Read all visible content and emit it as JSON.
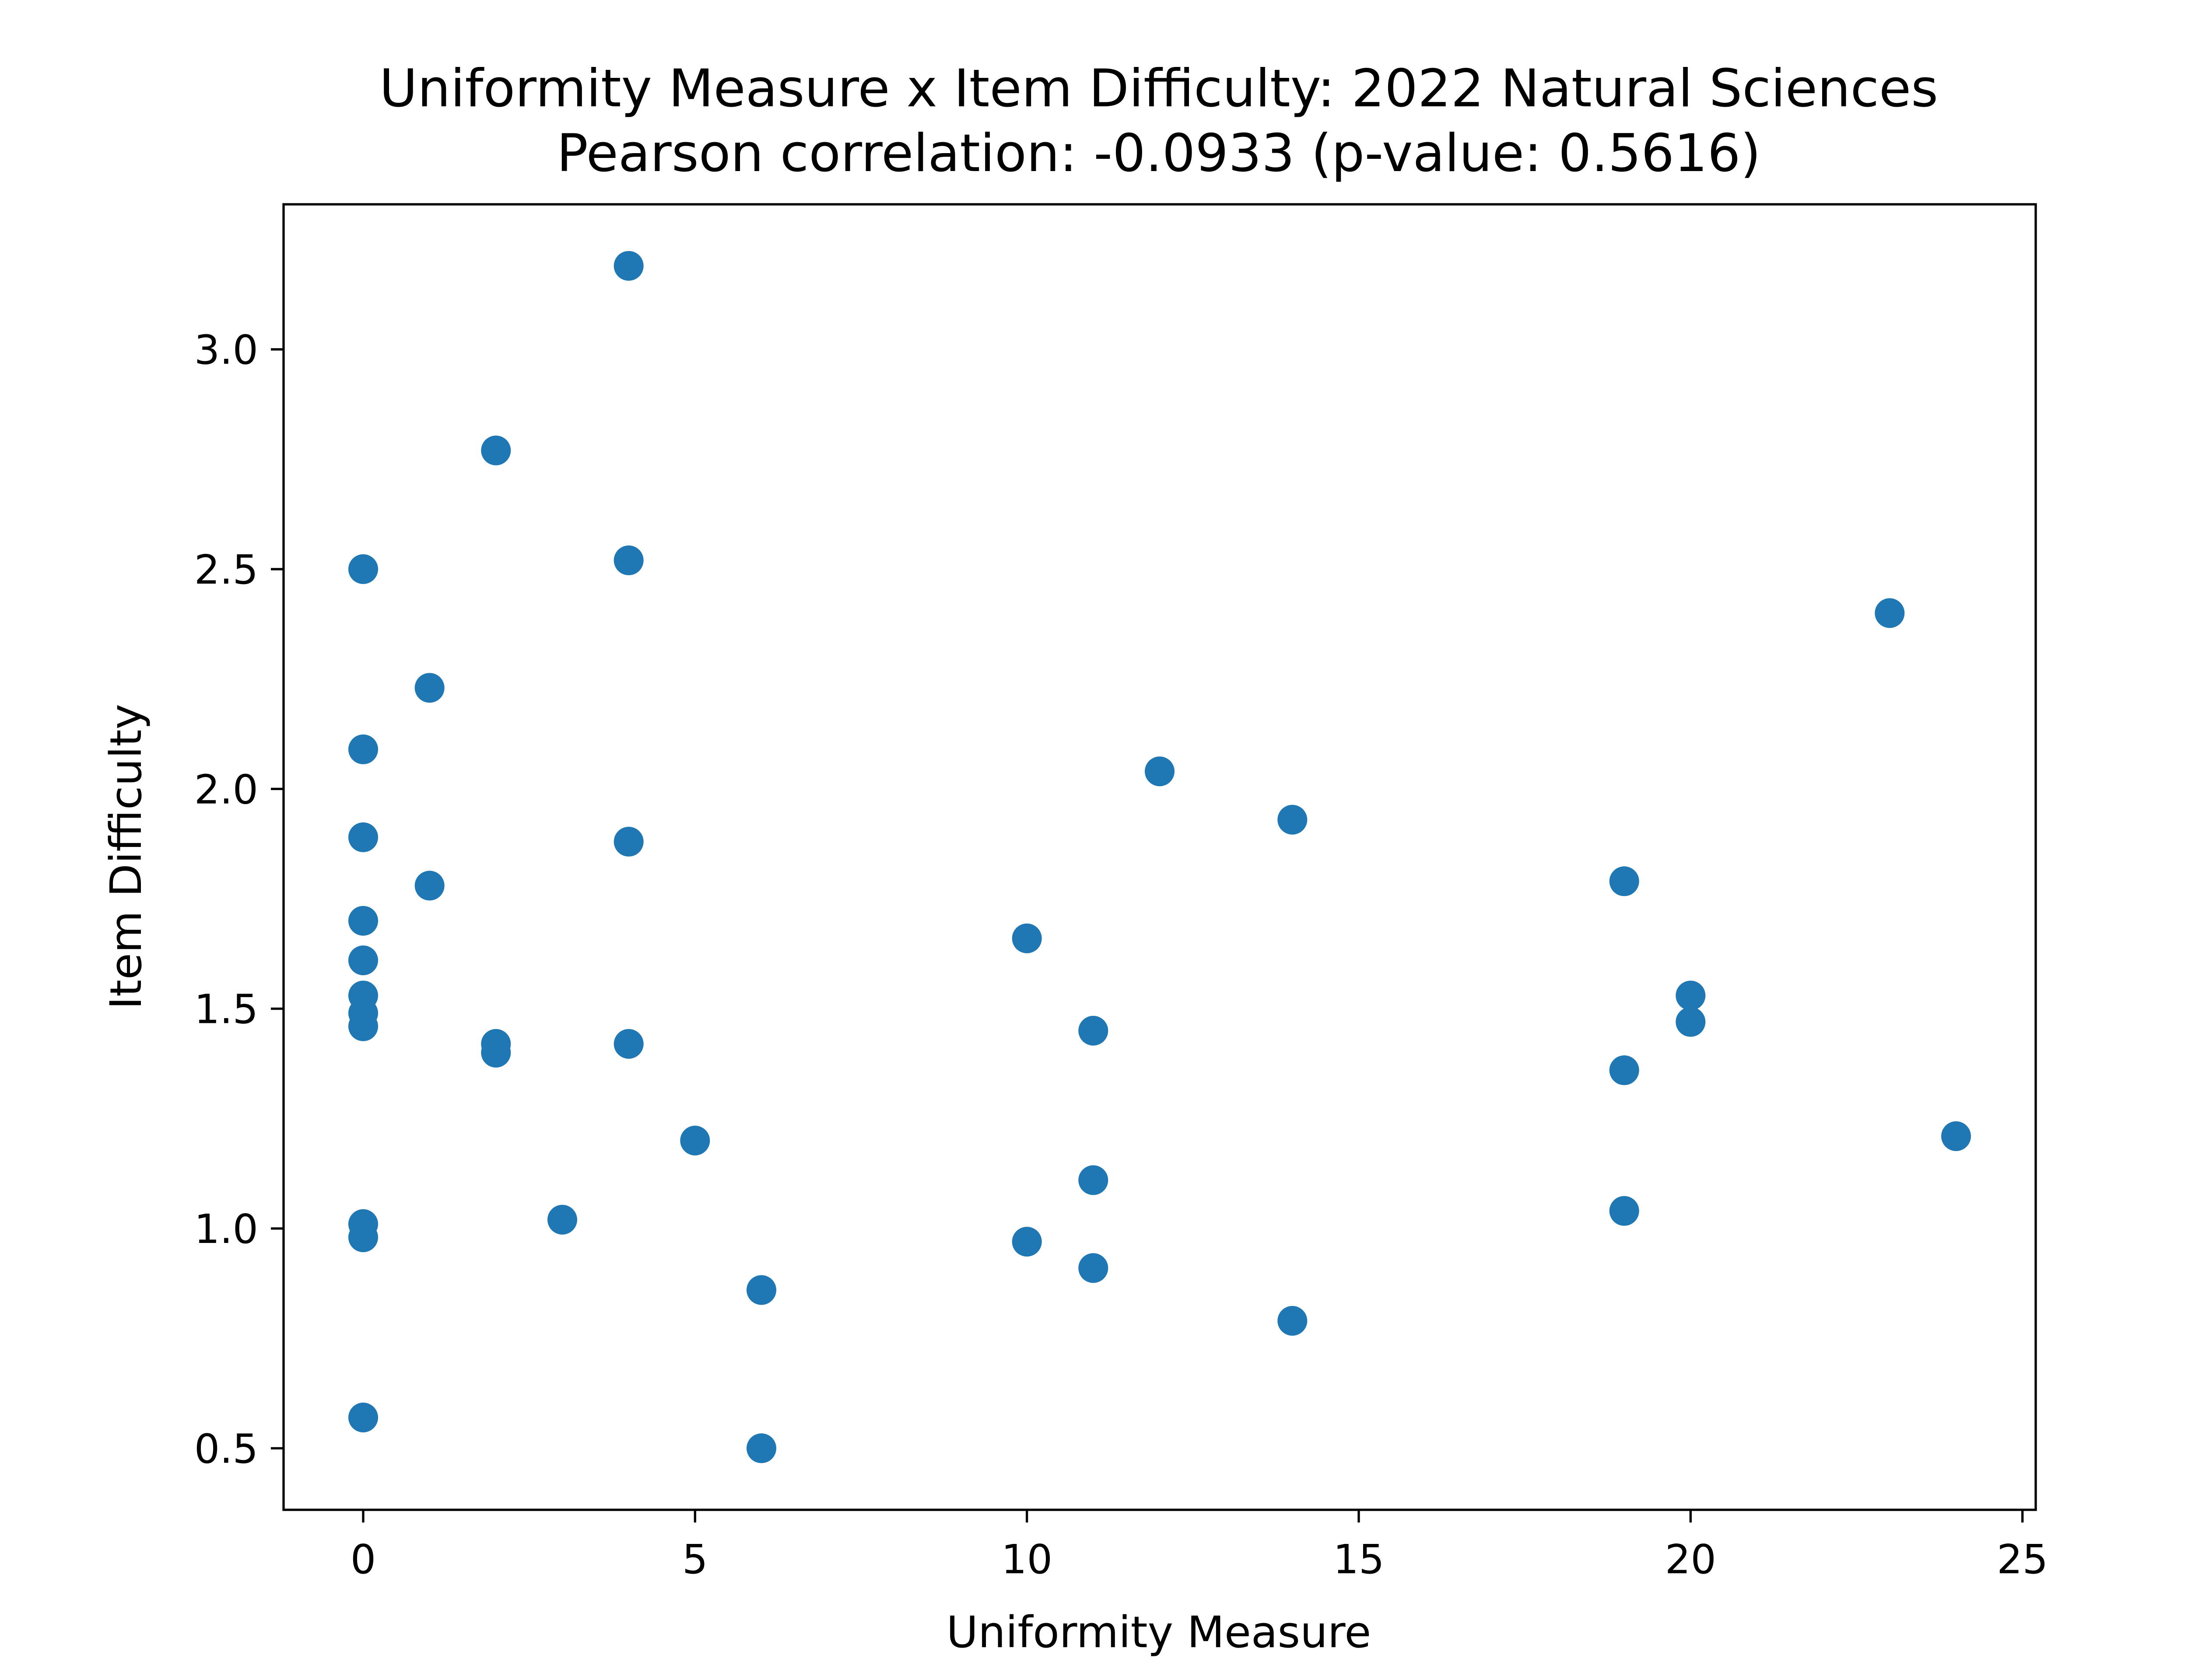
{
  "chart_data": {
    "type": "scatter",
    "title": "Uniformity Measure x Item Difficulty: 2022 Natural Sciences",
    "subtitle": "Pearson correlation: -0.0933 (p-value: 0.5616)",
    "xlabel": "Uniformity Measure",
    "ylabel": "Item Difficulty",
    "xlim": [
      -1.2,
      25.2
    ],
    "ylim": [
      0.36,
      3.33
    ],
    "xticks": [
      0,
      5,
      10,
      15,
      20,
      25
    ],
    "xtick_labels": [
      "0",
      "5",
      "10",
      "15",
      "20",
      "25"
    ],
    "yticks": [
      0.5,
      1.0,
      1.5,
      2.0,
      2.5,
      3.0
    ],
    "ytick_labels": [
      "0.5",
      "1.0",
      "1.5",
      "2.0",
      "2.5",
      "3.0"
    ],
    "grid": false,
    "marker_color": "#1f77b4",
    "points": [
      {
        "x": 0,
        "y": 2.5
      },
      {
        "x": 0,
        "y": 2.09
      },
      {
        "x": 0,
        "y": 1.89
      },
      {
        "x": 0,
        "y": 1.7
      },
      {
        "x": 0,
        "y": 1.61
      },
      {
        "x": 0,
        "y": 1.53
      },
      {
        "x": 0,
        "y": 1.49
      },
      {
        "x": 0,
        "y": 1.46
      },
      {
        "x": 0,
        "y": 1.01
      },
      {
        "x": 0,
        "y": 0.98
      },
      {
        "x": 0,
        "y": 0.57
      },
      {
        "x": 1,
        "y": 2.23
      },
      {
        "x": 1,
        "y": 1.78
      },
      {
        "x": 2,
        "y": 2.77
      },
      {
        "x": 2,
        "y": 1.42
      },
      {
        "x": 2,
        "y": 1.4
      },
      {
        "x": 3,
        "y": 1.02
      },
      {
        "x": 4,
        "y": 3.19
      },
      {
        "x": 4,
        "y": 2.52
      },
      {
        "x": 4,
        "y": 1.88
      },
      {
        "x": 4,
        "y": 1.42
      },
      {
        "x": 5,
        "y": 1.2
      },
      {
        "x": 6,
        "y": 0.86
      },
      {
        "x": 6,
        "y": 0.5
      },
      {
        "x": 10,
        "y": 1.66
      },
      {
        "x": 10,
        "y": 0.97
      },
      {
        "x": 11,
        "y": 1.45
      },
      {
        "x": 11,
        "y": 1.11
      },
      {
        "x": 11,
        "y": 0.91
      },
      {
        "x": 12,
        "y": 2.04
      },
      {
        "x": 14,
        "y": 1.93
      },
      {
        "x": 14,
        "y": 0.79
      },
      {
        "x": 19,
        "y": 1.79
      },
      {
        "x": 19,
        "y": 1.36
      },
      {
        "x": 19,
        "y": 1.04
      },
      {
        "x": 20,
        "y": 1.53
      },
      {
        "x": 20,
        "y": 1.47
      },
      {
        "x": 23,
        "y": 2.4
      },
      {
        "x": 24,
        "y": 1.21
      }
    ]
  }
}
